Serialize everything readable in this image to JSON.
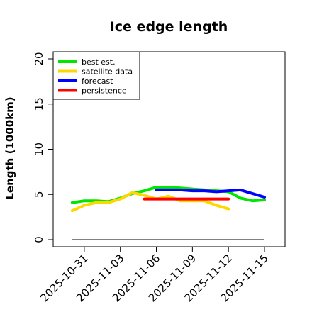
{
  "chart_data": {
    "type": "line",
    "title": "Ice edge length",
    "xlabel": "",
    "ylabel": "Length (1000km)",
    "ylim": [
      -0.5,
      21
    ],
    "xlim": [
      "2025-10-29",
      "2025-11-15"
    ],
    "y_ticks": [
      0,
      5,
      10,
      15,
      20
    ],
    "x_ticks": [
      {
        "label": "2025-10-31",
        "date": "2025-10-31",
        "color": "#000000"
      },
      {
        "label": "2025-11-03",
        "date": "2025-11-03",
        "color": "#000000"
      },
      {
        "label": "2025-11-06",
        "date": "2025-11-06",
        "color": "#228b22"
      },
      {
        "label": "2025-11-09",
        "date": "2025-11-09",
        "color": "#000000"
      },
      {
        "label": "2025-11-12",
        "date": "2025-11-12",
        "color": "#000000"
      },
      {
        "label": "2025-11-15",
        "date": "2025-11-15",
        "color": "#000000"
      }
    ],
    "grid": false,
    "legend_position": "top-left",
    "baseline": {
      "y": 0,
      "color": "#808080"
    },
    "series": [
      {
        "name": "best est.",
        "color": "#00e600",
        "x": [
          "2025-10-30",
          "2025-10-31",
          "2025-11-01",
          "2025-11-02",
          "2025-11-03",
          "2025-11-04",
          "2025-11-05",
          "2025-11-06",
          "2025-11-07",
          "2025-11-08",
          "2025-11-09",
          "2025-11-10",
          "2025-11-11",
          "2025-11-12",
          "2025-11-13",
          "2025-11-14",
          "2025-11-15"
        ],
        "y": [
          4.1,
          4.3,
          4.3,
          4.2,
          4.6,
          5.1,
          5.4,
          5.8,
          5.8,
          5.7,
          5.6,
          5.5,
          5.4,
          5.3,
          4.6,
          4.3,
          4.4
        ]
      },
      {
        "name": "satellite data",
        "color": "#ffd700",
        "x": [
          "2025-10-30",
          "2025-10-31",
          "2025-11-01",
          "2025-11-02",
          "2025-11-03",
          "2025-11-04",
          "2025-11-05",
          "2025-11-06",
          "2025-11-07",
          "2025-11-08",
          "2025-11-09",
          "2025-11-10",
          "2025-11-11",
          "2025-11-12"
        ],
        "y": [
          3.2,
          3.8,
          4.1,
          4.1,
          4.5,
          5.2,
          4.9,
          4.5,
          4.8,
          4.3,
          4.3,
          4.3,
          3.8,
          3.4
        ]
      },
      {
        "name": "forecast",
        "color": "#0000ff",
        "x": [
          "2025-11-06",
          "2025-11-07",
          "2025-11-08",
          "2025-11-09",
          "2025-11-10",
          "2025-11-11",
          "2025-11-12",
          "2025-11-13",
          "2025-11-14",
          "2025-11-15"
        ],
        "y": [
          5.5,
          5.5,
          5.5,
          5.4,
          5.4,
          5.3,
          5.4,
          5.5,
          5.1,
          4.7
        ]
      },
      {
        "name": "persistence",
        "color": "#ff0000",
        "x": [
          "2025-11-05",
          "2025-11-12"
        ],
        "y": [
          4.5,
          4.5
        ]
      }
    ]
  }
}
